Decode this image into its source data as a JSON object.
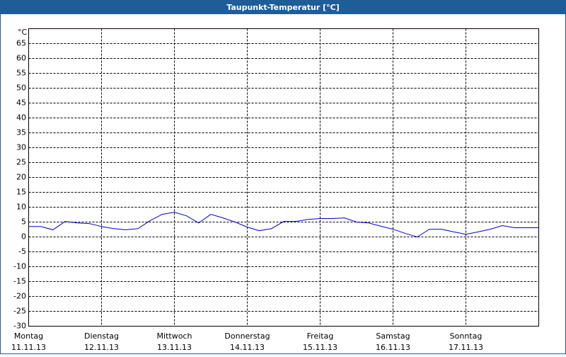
{
  "chart_data": {
    "type": "line",
    "title": "Taupunkt-Temperatur [°C]",
    "y_unit": "°C",
    "x": [
      0,
      4,
      8,
      12,
      16,
      20,
      24,
      28,
      32,
      36,
      40,
      44,
      48,
      52,
      56,
      60,
      64,
      68,
      72,
      76,
      80,
      84,
      88,
      92,
      96,
      100,
      104,
      108,
      112,
      116,
      120,
      124,
      128,
      132,
      136,
      140,
      144,
      148,
      152,
      156,
      160,
      164,
      168
    ],
    "series": [
      {
        "name": "Taupunkt",
        "color": "#0000cc",
        "values": [
          3.5,
          3.5,
          2.4,
          5.2,
          4.7,
          4.5,
          3.5,
          2.8,
          2.4,
          2.8,
          5.5,
          7.6,
          8.3,
          7.1,
          4.7,
          7.6,
          6.4,
          5,
          3.3,
          2.1,
          2.8,
          5.2,
          5.2,
          5.9,
          6.2,
          6.2,
          6.4,
          5,
          4.7,
          3.6,
          2.6,
          1.2,
          0,
          2.6,
          2.6,
          1.7,
          0.9,
          1.7,
          2.6,
          3.8,
          3.1,
          3.1,
          3.1
        ]
      }
    ],
    "xlim": [
      0,
      168
    ],
    "xticks": [
      {
        "value": 0,
        "label": "11.11.13"
      },
      {
        "value": 24,
        "label": "12.11.13"
      },
      {
        "value": 48,
        "label": "13.11.13"
      },
      {
        "value": 72,
        "label": "14.11.13"
      },
      {
        "value": 96,
        "label": "15.11.13"
      },
      {
        "value": 120,
        "label": "16.11.13"
      },
      {
        "value": 144,
        "label": "17.11.13"
      }
    ],
    "xtick_days": [
      "Montag",
      "Dienstag",
      "Mittwoch",
      "Donnerstag",
      "Freitag",
      "Samstag",
      "Sonntag"
    ],
    "ylim": [
      -30,
      70
    ],
    "yticks": [
      -30,
      -25,
      -20,
      -15,
      -10,
      -5,
      0,
      5,
      10,
      15,
      20,
      25,
      30,
      35,
      40,
      45,
      50,
      55,
      60,
      65
    ],
    "grid": true
  }
}
